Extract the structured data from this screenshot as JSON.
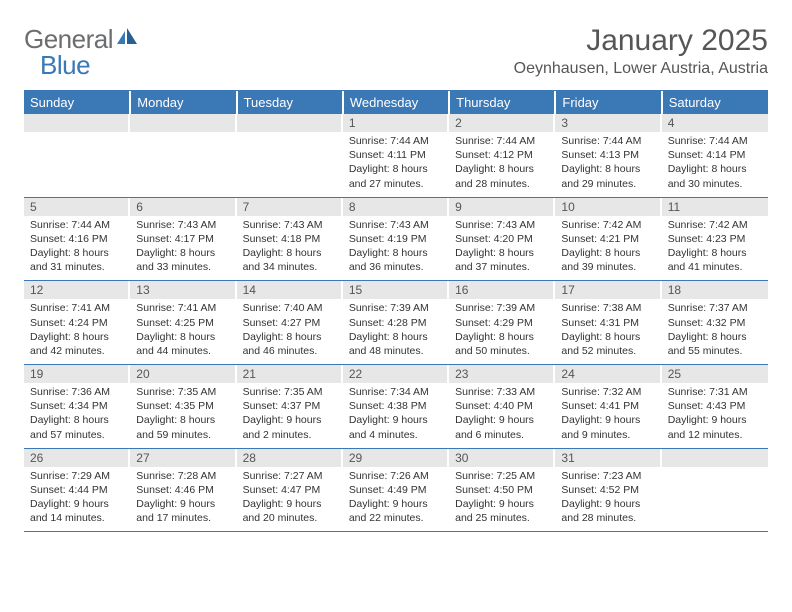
{
  "brand": {
    "text1": "General",
    "text2": "Blue"
  },
  "title": "January 2025",
  "location": "Oeynhausen, Lower Austria, Austria",
  "header_bg": "#3a78b6",
  "header_text": "#ffffff",
  "daynum_bg": "#e7e7e7",
  "text_color": "#333333",
  "rule_color": "#3a78b6",
  "dow": [
    "Sunday",
    "Monday",
    "Tuesday",
    "Wednesday",
    "Thursday",
    "Friday",
    "Saturday"
  ],
  "weeks": [
    [
      null,
      null,
      null,
      {
        "n": "1",
        "sr": "7:44 AM",
        "ss": "4:11 PM",
        "dl": "8 hours and 27 minutes."
      },
      {
        "n": "2",
        "sr": "7:44 AM",
        "ss": "4:12 PM",
        "dl": "8 hours and 28 minutes."
      },
      {
        "n": "3",
        "sr": "7:44 AM",
        "ss": "4:13 PM",
        "dl": "8 hours and 29 minutes."
      },
      {
        "n": "4",
        "sr": "7:44 AM",
        "ss": "4:14 PM",
        "dl": "8 hours and 30 minutes."
      }
    ],
    [
      {
        "n": "5",
        "sr": "7:44 AM",
        "ss": "4:16 PM",
        "dl": "8 hours and 31 minutes."
      },
      {
        "n": "6",
        "sr": "7:43 AM",
        "ss": "4:17 PM",
        "dl": "8 hours and 33 minutes."
      },
      {
        "n": "7",
        "sr": "7:43 AM",
        "ss": "4:18 PM",
        "dl": "8 hours and 34 minutes."
      },
      {
        "n": "8",
        "sr": "7:43 AM",
        "ss": "4:19 PM",
        "dl": "8 hours and 36 minutes."
      },
      {
        "n": "9",
        "sr": "7:43 AM",
        "ss": "4:20 PM",
        "dl": "8 hours and 37 minutes."
      },
      {
        "n": "10",
        "sr": "7:42 AM",
        "ss": "4:21 PM",
        "dl": "8 hours and 39 minutes."
      },
      {
        "n": "11",
        "sr": "7:42 AM",
        "ss": "4:23 PM",
        "dl": "8 hours and 41 minutes."
      }
    ],
    [
      {
        "n": "12",
        "sr": "7:41 AM",
        "ss": "4:24 PM",
        "dl": "8 hours and 42 minutes."
      },
      {
        "n": "13",
        "sr": "7:41 AM",
        "ss": "4:25 PM",
        "dl": "8 hours and 44 minutes."
      },
      {
        "n": "14",
        "sr": "7:40 AM",
        "ss": "4:27 PM",
        "dl": "8 hours and 46 minutes."
      },
      {
        "n": "15",
        "sr": "7:39 AM",
        "ss": "4:28 PM",
        "dl": "8 hours and 48 minutes."
      },
      {
        "n": "16",
        "sr": "7:39 AM",
        "ss": "4:29 PM",
        "dl": "8 hours and 50 minutes."
      },
      {
        "n": "17",
        "sr": "7:38 AM",
        "ss": "4:31 PM",
        "dl": "8 hours and 52 minutes."
      },
      {
        "n": "18",
        "sr": "7:37 AM",
        "ss": "4:32 PM",
        "dl": "8 hours and 55 minutes."
      }
    ],
    [
      {
        "n": "19",
        "sr": "7:36 AM",
        "ss": "4:34 PM",
        "dl": "8 hours and 57 minutes."
      },
      {
        "n": "20",
        "sr": "7:35 AM",
        "ss": "4:35 PM",
        "dl": "8 hours and 59 minutes."
      },
      {
        "n": "21",
        "sr": "7:35 AM",
        "ss": "4:37 PM",
        "dl": "9 hours and 2 minutes."
      },
      {
        "n": "22",
        "sr": "7:34 AM",
        "ss": "4:38 PM",
        "dl": "9 hours and 4 minutes."
      },
      {
        "n": "23",
        "sr": "7:33 AM",
        "ss": "4:40 PM",
        "dl": "9 hours and 6 minutes."
      },
      {
        "n": "24",
        "sr": "7:32 AM",
        "ss": "4:41 PM",
        "dl": "9 hours and 9 minutes."
      },
      {
        "n": "25",
        "sr": "7:31 AM",
        "ss": "4:43 PM",
        "dl": "9 hours and 12 minutes."
      }
    ],
    [
      {
        "n": "26",
        "sr": "7:29 AM",
        "ss": "4:44 PM",
        "dl": "9 hours and 14 minutes."
      },
      {
        "n": "27",
        "sr": "7:28 AM",
        "ss": "4:46 PM",
        "dl": "9 hours and 17 minutes."
      },
      {
        "n": "28",
        "sr": "7:27 AM",
        "ss": "4:47 PM",
        "dl": "9 hours and 20 minutes."
      },
      {
        "n": "29",
        "sr": "7:26 AM",
        "ss": "4:49 PM",
        "dl": "9 hours and 22 minutes."
      },
      {
        "n": "30",
        "sr": "7:25 AM",
        "ss": "4:50 PM",
        "dl": "9 hours and 25 minutes."
      },
      {
        "n": "31",
        "sr": "7:23 AM",
        "ss": "4:52 PM",
        "dl": "9 hours and 28 minutes."
      },
      null
    ]
  ],
  "labels": {
    "sunrise": "Sunrise:",
    "sunset": "Sunset:",
    "daylight": "Daylight:"
  }
}
